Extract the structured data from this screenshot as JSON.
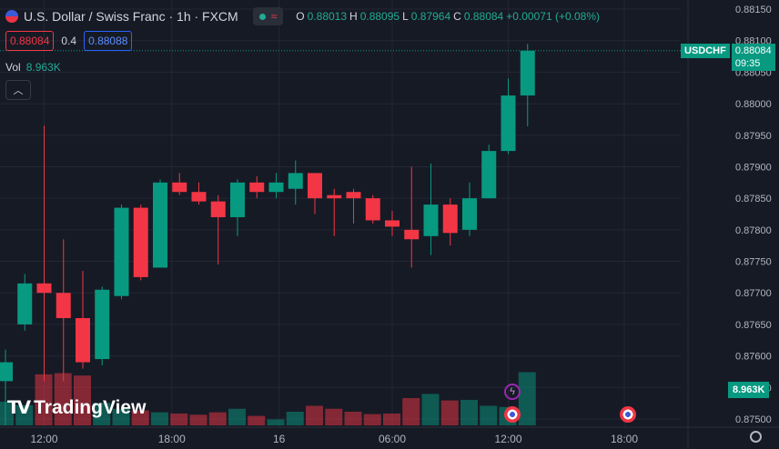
{
  "header": {
    "title": "U.S. Dollar / Swiss Franc · 1h · FXCM",
    "ohlc": [
      {
        "label": "O",
        "value": "0.88013"
      },
      {
        "label": "H",
        "value": "0.88095"
      },
      {
        "label": "L",
        "value": "0.87964"
      },
      {
        "label": "C",
        "value": "0.88084"
      },
      {
        "label": "",
        "value": "+0.00071 (+0.08%)"
      }
    ],
    "sell_price": "0.88084",
    "spread": "0.4",
    "buy_price": "0.88088",
    "vol_label": "Vol",
    "vol_value": "8.963K"
  },
  "price_tag": {
    "symbol": "USDCHF",
    "price": "0.88084",
    "countdown": "09:35"
  },
  "volume_tag": "8.963K",
  "logo_text": "TradingView",
  "colors": {
    "up": "#089981",
    "down": "#f23645",
    "background": "#161a25",
    "grid": "#232734"
  },
  "chart_data": {
    "type": "candlestick",
    "y_axis": {
      "min": 0.875,
      "max": 0.8815,
      "ticks": [
        "0.88150",
        "0.88100",
        "0.88050",
        "0.88000",
        "0.87950",
        "0.87900",
        "0.87850",
        "0.87800",
        "0.87750",
        "0.87700",
        "0.87650",
        "0.87600",
        "0.87550",
        "0.87500"
      ]
    },
    "x_ticks": [
      "12:00",
      "18:00",
      "16",
      "06:00",
      "12:00",
      "18:00"
    ],
    "last_price": 0.88084,
    "candles": [
      {
        "o": 0.8756,
        "h": 0.8761,
        "l": 0.8749,
        "c": 0.8759,
        "v": 4.0
      },
      {
        "o": 0.8765,
        "h": 0.8773,
        "l": 0.8764,
        "c": 0.87715,
        "v": 3.4
      },
      {
        "o": 0.87715,
        "h": 0.87965,
        "l": 0.8756,
        "c": 0.877,
        "v": 8.6
      },
      {
        "o": 0.877,
        "h": 0.87785,
        "l": 0.8756,
        "c": 0.8766,
        "v": 8.8
      },
      {
        "o": 0.8766,
        "h": 0.87735,
        "l": 0.8758,
        "c": 0.8759,
        "v": 8.4
      },
      {
        "o": 0.87595,
        "h": 0.8771,
        "l": 0.87585,
        "c": 0.87705,
        "v": 3.8
      },
      {
        "o": 0.87695,
        "h": 0.8784,
        "l": 0.8769,
        "c": 0.87835,
        "v": 2.8
      },
      {
        "o": 0.87835,
        "h": 0.8784,
        "l": 0.8772,
        "c": 0.87725,
        "v": 2.5
      },
      {
        "o": 0.8774,
        "h": 0.8788,
        "l": 0.8774,
        "c": 0.87875,
        "v": 2.2
      },
      {
        "o": 0.87875,
        "h": 0.8789,
        "l": 0.87855,
        "c": 0.8786,
        "v": 2.0
      },
      {
        "o": 0.8786,
        "h": 0.87875,
        "l": 0.8784,
        "c": 0.87845,
        "v": 1.8
      },
      {
        "o": 0.87845,
        "h": 0.87855,
        "l": 0.87745,
        "c": 0.8782,
        "v": 2.2
      },
      {
        "o": 0.8782,
        "h": 0.8788,
        "l": 0.8779,
        "c": 0.87875,
        "v": 2.8
      },
      {
        "o": 0.87875,
        "h": 0.87885,
        "l": 0.8785,
        "c": 0.8786,
        "v": 1.6
      },
      {
        "o": 0.8786,
        "h": 0.8789,
        "l": 0.8785,
        "c": 0.87875,
        "v": 1.0
      },
      {
        "o": 0.87865,
        "h": 0.8791,
        "l": 0.8784,
        "c": 0.8789,
        "v": 2.3
      },
      {
        "o": 0.8789,
        "h": 0.8789,
        "l": 0.87825,
        "c": 0.8785,
        "v": 3.3
      },
      {
        "o": 0.87855,
        "h": 0.87865,
        "l": 0.8779,
        "c": 0.8785,
        "v": 2.8
      },
      {
        "o": 0.8786,
        "h": 0.87865,
        "l": 0.8781,
        "c": 0.8785,
        "v": 2.3
      },
      {
        "o": 0.8785,
        "h": 0.87855,
        "l": 0.8781,
        "c": 0.87815,
        "v": 1.9
      },
      {
        "o": 0.87815,
        "h": 0.8783,
        "l": 0.8779,
        "c": 0.87805,
        "v": 2.0
      },
      {
        "o": 0.878,
        "h": 0.879,
        "l": 0.8774,
        "c": 0.87785,
        "v": 4.6
      },
      {
        "o": 0.8779,
        "h": 0.87905,
        "l": 0.8776,
        "c": 0.8784,
        "v": 5.3
      },
      {
        "o": 0.8784,
        "h": 0.8785,
        "l": 0.87775,
        "c": 0.87795,
        "v": 4.2
      },
      {
        "o": 0.878,
        "h": 0.87875,
        "l": 0.8779,
        "c": 0.8785,
        "v": 4.3
      },
      {
        "o": 0.8785,
        "h": 0.87935,
        "l": 0.8785,
        "c": 0.87925,
        "v": 3.3
      },
      {
        "o": 0.87925,
        "h": 0.8804,
        "l": 0.8792,
        "c": 0.88013,
        "v": 3.1
      },
      {
        "o": 0.88013,
        "h": 0.88095,
        "l": 0.87964,
        "c": 0.88084,
        "v": 8.963
      }
    ]
  }
}
